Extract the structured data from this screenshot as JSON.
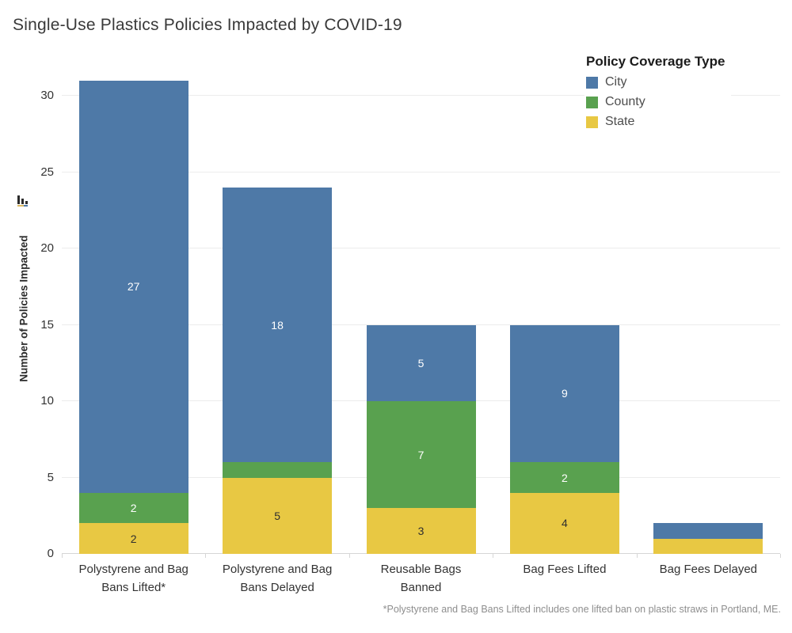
{
  "title": "Single-Use Plastics Policies Impacted by COVID-19",
  "footnote": "*Polystyrene and Bag Bans Lifted includes one lifted ban on plastic straws in Portland, ME.",
  "y_axis": {
    "label": "Number of Policies Impacted",
    "ticks": [
      0,
      5,
      10,
      15,
      20,
      25,
      30
    ],
    "max": 32.75,
    "sort_icon": "descending-bars-sort-icon"
  },
  "legend": {
    "title": "Policy Coverage Type",
    "position": "top-right",
    "items": [
      {
        "label": "City",
        "color": "#4e79a7"
      },
      {
        "label": "County",
        "color": "#59a14f"
      },
      {
        "label": "State",
        "color": "#e8c843"
      }
    ]
  },
  "colors": {
    "city": "#4e79a7",
    "county": "#59a14f",
    "state": "#e8c843",
    "grid": "#ececec",
    "baseline": "#d6d6d6"
  },
  "chart_data": {
    "type": "bar",
    "stacked": true,
    "grid": true,
    "legend_position": "top-right",
    "title": "Single-Use Plastics Policies Impacted by COVID-19",
    "xlabel": "",
    "ylabel": "Number of Policies Impacted",
    "ylim": [
      0,
      32.75
    ],
    "categories": [
      "Polystyrene and Bag Bans Lifted*",
      "Polystyrene and Bag Bans Delayed",
      "Reusable Bags Banned",
      "Bag Fees Lifted",
      "Bag Fees Delayed"
    ],
    "category_lines": [
      [
        "Polystyrene and Bag",
        "Bans Lifted*"
      ],
      [
        "Polystyrene and Bag",
        "Bans Delayed"
      ],
      [
        "Reusable Bags",
        "Banned"
      ],
      [
        "Bag Fees Lifted"
      ],
      [
        "Bag Fees Delayed"
      ]
    ],
    "series": [
      {
        "name": "State",
        "color": "#e8c843",
        "label_color": "#2f2f2f",
        "values": [
          2,
          5,
          3,
          4,
          1
        ]
      },
      {
        "name": "County",
        "color": "#59a14f",
        "label_color": "#ffffff",
        "values": [
          2,
          1,
          7,
          2,
          0
        ]
      },
      {
        "name": "City",
        "color": "#4e79a7",
        "label_color": "#ffffff",
        "values": [
          27,
          18,
          5,
          9,
          1
        ]
      }
    ],
    "totals": [
      31,
      24,
      15,
      15,
      2
    ]
  }
}
